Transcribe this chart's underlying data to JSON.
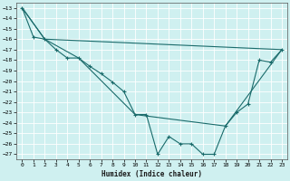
{
  "title": "",
  "xlabel": "Humidex (Indice chaleur)",
  "bg_color": "#cff0f0",
  "grid_color": "#ffffff",
  "line_color": "#1a6b6b",
  "xlim": [
    -0.5,
    23.5
  ],
  "ylim": [
    -27.5,
    -12.5
  ],
  "yticks": [
    -13,
    -14,
    -15,
    -16,
    -17,
    -18,
    -19,
    -20,
    -21,
    -22,
    -23,
    -24,
    -25,
    -26,
    -27
  ],
  "xticks": [
    0,
    1,
    2,
    3,
    4,
    5,
    6,
    7,
    8,
    9,
    10,
    11,
    12,
    13,
    14,
    15,
    16,
    17,
    18,
    19,
    20,
    21,
    22,
    23
  ],
  "line1_x": [
    0,
    1,
    2,
    3,
    4,
    5,
    6,
    7,
    8,
    9,
    10,
    11,
    12,
    13,
    14,
    15,
    16,
    17,
    18,
    19,
    20,
    21,
    22,
    23
  ],
  "line1_y": [
    -13,
    -15.8,
    -16.0,
    -17.0,
    -17.8,
    -17.8,
    -18.6,
    -19.3,
    -20.1,
    -21.0,
    -23.2,
    -23.2,
    -27.0,
    -25.3,
    -26.0,
    -26.0,
    -27.0,
    -27.0,
    -24.3,
    -23.0,
    -22.2,
    -18.0,
    -18.2,
    -17.0
  ],
  "line2_x": [
    0,
    2,
    23
  ],
  "line2_y": [
    -13,
    -16.0,
    -17.0
  ],
  "line3_x": [
    0,
    2,
    5,
    10,
    18,
    23
  ],
  "line3_y": [
    -13,
    -16.0,
    -17.8,
    -23.2,
    -24.3,
    -17.0
  ]
}
